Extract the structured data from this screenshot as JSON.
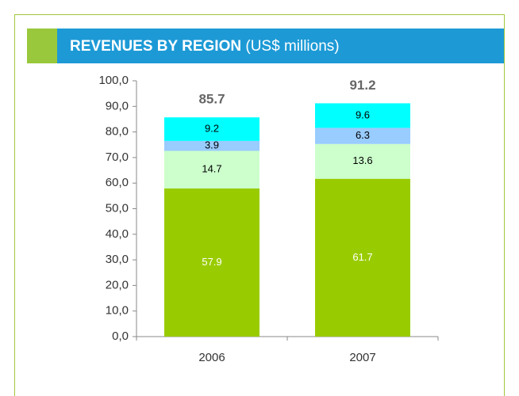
{
  "chart_data": {
    "type": "stacked_bar",
    "title": "REVENUES BY REGION",
    "subtitle": "(US$ millions)",
    "categories": [
      "2006",
      "2007"
    ],
    "series": [
      {
        "color": "#99cc00",
        "label_color": "#ffffff",
        "values": [
          57.9,
          61.7
        ]
      },
      {
        "color": "#ccffcc",
        "label_color": "#000000",
        "values": [
          14.7,
          13.6
        ]
      },
      {
        "color": "#99ccff",
        "label_color": "#000000",
        "values": [
          3.9,
          6.3
        ]
      },
      {
        "color": "#00ffff",
        "label_color": "#000000",
        "values": [
          9.2,
          9.6
        ]
      }
    ],
    "totals": [
      85.7,
      91.2
    ],
    "ylim": [
      0,
      100
    ],
    "yticks": [
      {
        "value": 0,
        "label": "0,0"
      },
      {
        "value": 10,
        "label": "10,0"
      },
      {
        "value": 20,
        "label": "20,0"
      },
      {
        "value": 30,
        "label": "30,0"
      },
      {
        "value": 40,
        "label": "40,0"
      },
      {
        "value": 50,
        "label": "50,0"
      },
      {
        "value": 60,
        "label": "60,0"
      },
      {
        "value": 70,
        "label": "70,0"
      },
      {
        "value": 80,
        "label": "80,0"
      },
      {
        "value": 90,
        "label": "90,0"
      },
      {
        "value": 100,
        "label": "100,0"
      }
    ]
  }
}
